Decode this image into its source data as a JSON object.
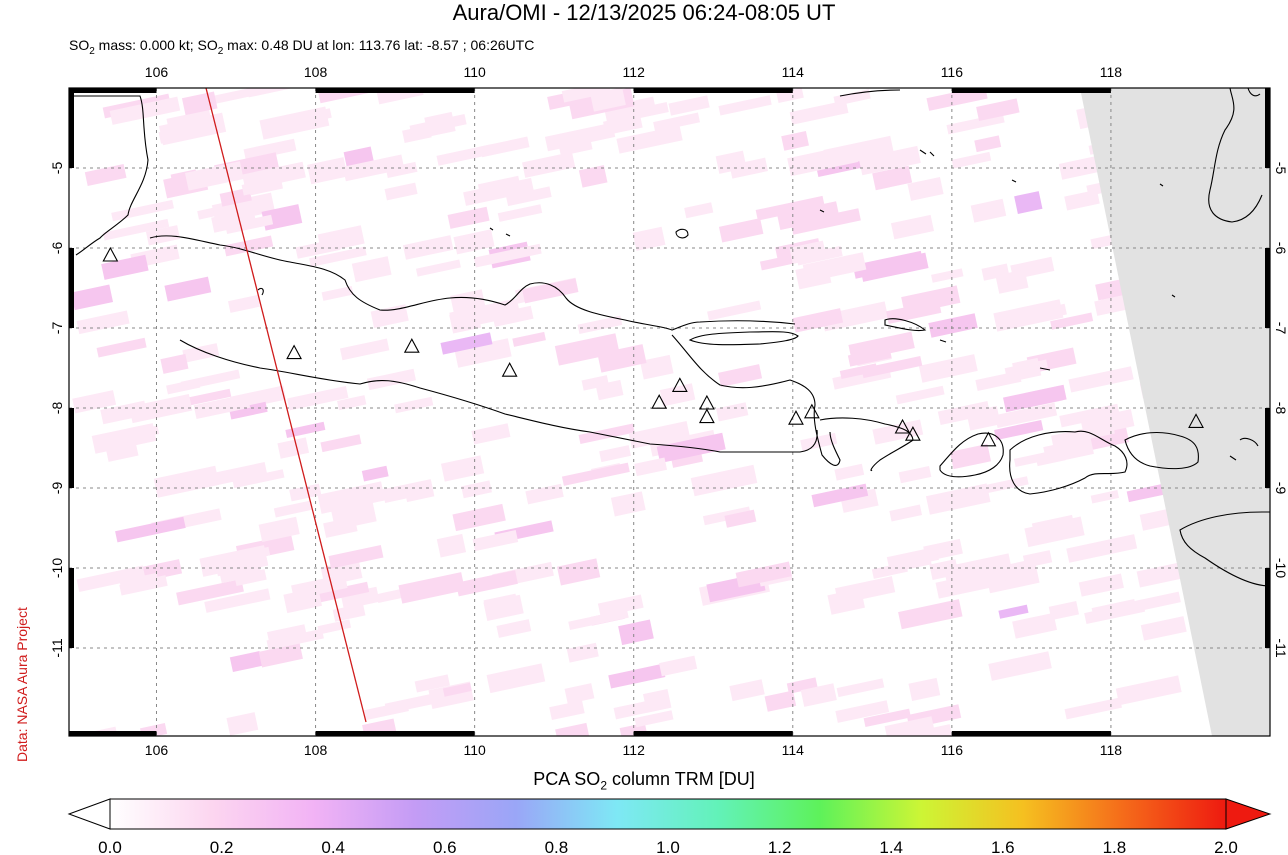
{
  "title": "Aura/OMI - 12/13/2025 06:24-08:05 UT",
  "subtitle": {
    "mass_prefix": "SO",
    "mass_sub": "2",
    "mass_text": " mass: 0.000 kt; SO",
    "max_sub": "2",
    "max_text": " max: 0.48 DU at lon: 113.76 lat: -8.57 ; 06:26UTC"
  },
  "credit": "Data: NASA Aura Project",
  "colorbar": {
    "title_prefix": "PCA SO",
    "title_sub": "2",
    "title_suffix": " column TRM [DU]",
    "ticks": [
      "0.0",
      "0.2",
      "0.4",
      "0.6",
      "0.8",
      "1.0",
      "1.2",
      "1.4",
      "1.6",
      "1.8",
      "2.0"
    ],
    "range": [
      0.0,
      2.0
    ],
    "colors": [
      "#ffffff",
      "#fcd6f0",
      "#f2b3f5",
      "#c49cf5",
      "#9aa6f7",
      "#7ee8f5",
      "#62f2b8",
      "#5ef25a",
      "#cdf535",
      "#f5c020",
      "#f56a1a",
      "#ee1a10"
    ]
  },
  "map": {
    "lon_range": [
      104.9,
      120.0
    ],
    "lat_range": [
      -12.1,
      -4.0
    ],
    "lon_ticks": [
      "106",
      "108",
      "110",
      "112",
      "114",
      "116",
      "118"
    ],
    "lat_ticks": [
      "-5",
      "-6",
      "-7",
      "-8",
      "-9",
      "-10",
      "-11"
    ],
    "grid": "dotted",
    "orbit_edge_color": "#d01c1c",
    "no_data_color": "#e2e2e2"
  },
  "chart_data": {
    "type": "heatmap",
    "max_value_du": 0.48,
    "max_location": {
      "lon": 113.76,
      "lat": -8.57
    },
    "mass_kt": 0.0,
    "volcanoes": [
      {
        "lon": 105.42,
        "lat": -6.1
      },
      {
        "lon": 107.73,
        "lat": -7.32
      },
      {
        "lon": 109.21,
        "lat": -7.24
      },
      {
        "lon": 110.44,
        "lat": -7.54
      },
      {
        "lon": 112.32,
        "lat": -7.94
      },
      {
        "lon": 112.58,
        "lat": -7.73
      },
      {
        "lon": 112.92,
        "lat": -7.95
      },
      {
        "lon": 112.92,
        "lat": -8.12
      },
      {
        "lon": 114.04,
        "lat": -8.14
      },
      {
        "lon": 114.24,
        "lat": -8.06
      },
      {
        "lon": 115.38,
        "lat": -8.25
      },
      {
        "lon": 115.51,
        "lat": -8.34
      },
      {
        "lon": 116.46,
        "lat": -8.41
      },
      {
        "lon": 119.07,
        "lat": -8.18
      }
    ]
  }
}
